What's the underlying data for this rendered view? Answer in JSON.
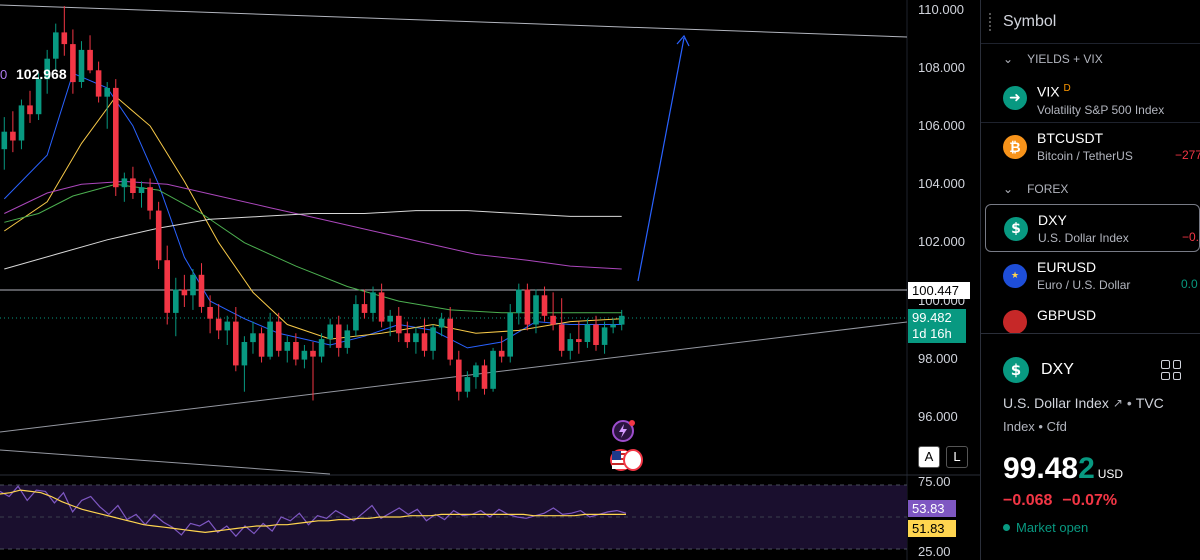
{
  "chart": {
    "price_scale": [
      "110.000",
      "108.000",
      "106.000",
      "104.000",
      "102.000",
      "100.000",
      "98.000",
      "96.000"
    ],
    "high_label_prefix": "0",
    "high_label": "102.968",
    "level_tag": "100.447",
    "last_price_tag": "99.482",
    "countdown": "1d 16h",
    "rsi_scale": [
      "75.00",
      "25.00"
    ],
    "rsi_value": "53.83",
    "rsi_ma_value": "51.83",
    "scale_buttons": [
      "A",
      "L"
    ],
    "colors": {
      "up": "#089981",
      "down": "#f23645",
      "arrow": "#2962ff"
    }
  },
  "chart_data": {
    "type": "candlestick",
    "ylim": [
      95.5,
      110.3
    ],
    "rsi_ylim": [
      25,
      75
    ],
    "candles": [
      [
        105.2,
        106.3,
        104.5,
        105.8
      ],
      [
        105.8,
        106.5,
        105.1,
        105.5
      ],
      [
        105.5,
        106.9,
        105.2,
        106.7
      ],
      [
        106.7,
        107.2,
        106.1,
        106.4
      ],
      [
        106.4,
        107.8,
        106.2,
        107.6
      ],
      [
        107.6,
        108.6,
        107.1,
        108.3
      ],
      [
        108.3,
        109.5,
        107.9,
        109.2
      ],
      [
        109.2,
        110.1,
        108.4,
        108.8
      ],
      [
        108.8,
        109.3,
        107.1,
        107.5
      ],
      [
        107.5,
        108.9,
        107.3,
        108.6
      ],
      [
        108.6,
        109.1,
        107.8,
        107.9
      ],
      [
        107.9,
        108.2,
        106.8,
        107.0
      ],
      [
        107.0,
        107.5,
        105.9,
        107.3
      ],
      [
        107.3,
        107.6,
        103.6,
        103.9
      ],
      [
        103.9,
        104.4,
        103.4,
        104.2
      ],
      [
        104.2,
        104.6,
        103.5,
        103.7
      ],
      [
        103.7,
        104.1,
        103.2,
        103.9
      ],
      [
        103.9,
        104.2,
        102.8,
        103.1
      ],
      [
        103.1,
        103.4,
        101.1,
        101.4
      ],
      [
        101.4,
        101.9,
        99.2,
        99.6
      ],
      [
        99.6,
        100.8,
        98.8,
        100.4
      ],
      [
        100.4,
        100.9,
        99.8,
        100.2
      ],
      [
        100.2,
        101.1,
        99.7,
        100.9
      ],
      [
        100.9,
        101.3,
        99.6,
        99.8
      ],
      [
        99.8,
        100.2,
        98.9,
        99.4
      ],
      [
        99.4,
        99.9,
        98.7,
        99.0
      ],
      [
        99.0,
        99.5,
        98.5,
        99.3
      ],
      [
        99.3,
        99.8,
        97.6,
        97.8
      ],
      [
        97.8,
        98.8,
        96.9,
        98.6
      ],
      [
        98.6,
        99.3,
        98.2,
        98.9
      ],
      [
        98.9,
        99.1,
        97.9,
        98.1
      ],
      [
        98.1,
        99.6,
        98.0,
        99.3
      ],
      [
        99.3,
        99.6,
        98.1,
        98.3
      ],
      [
        98.3,
        98.8,
        97.9,
        98.6
      ],
      [
        98.6,
        98.9,
        97.8,
        98.0
      ],
      [
        98.0,
        98.5,
        97.7,
        98.3
      ],
      [
        98.3,
        98.6,
        96.6,
        98.1
      ],
      [
        98.1,
        98.9,
        97.9,
        98.7
      ],
      [
        98.7,
        99.4,
        98.4,
        99.2
      ],
      [
        99.2,
        99.5,
        98.1,
        98.4
      ],
      [
        98.4,
        99.2,
        98.2,
        99.0
      ],
      [
        99.0,
        100.2,
        98.8,
        99.9
      ],
      [
        99.9,
        100.4,
        99.4,
        99.6
      ],
      [
        99.6,
        100.5,
        99.3,
        100.3
      ],
      [
        100.3,
        100.6,
        99.1,
        99.3
      ],
      [
        99.3,
        99.7,
        98.8,
        99.5
      ],
      [
        99.5,
        99.8,
        98.6,
        98.9
      ],
      [
        98.9,
        99.3,
        98.4,
        98.6
      ],
      [
        98.6,
        99.1,
        98.2,
        98.9
      ],
      [
        98.9,
        99.4,
        98.1,
        98.3
      ],
      [
        98.3,
        99.2,
        98.0,
        99.1
      ],
      [
        99.1,
        99.6,
        98.8,
        99.4
      ],
      [
        99.4,
        99.8,
        97.8,
        98.0
      ],
      [
        98.0,
        98.3,
        96.6,
        96.9
      ],
      [
        96.9,
        97.6,
        96.7,
        97.4
      ],
      [
        97.4,
        97.9,
        97.0,
        97.8
      ],
      [
        97.8,
        98.0,
        96.8,
        97.0
      ],
      [
        97.0,
        98.4,
        96.9,
        98.3
      ],
      [
        98.3,
        98.8,
        97.9,
        98.1
      ],
      [
        98.1,
        99.9,
        97.9,
        99.6
      ],
      [
        99.6,
        100.6,
        99.2,
        100.4
      ],
      [
        100.4,
        100.6,
        99.0,
        99.2
      ],
      [
        99.2,
        100.4,
        98.9,
        100.2
      ],
      [
        100.2,
        100.5,
        99.3,
        99.5
      ],
      [
        99.5,
        100.3,
        99.0,
        99.2
      ],
      [
        99.2,
        100.1,
        98.1,
        98.3
      ],
      [
        98.3,
        98.9,
        98.0,
        98.7
      ],
      [
        98.7,
        99.3,
        98.2,
        98.6
      ],
      [
        98.6,
        99.4,
        98.4,
        99.2
      ],
      [
        99.2,
        99.5,
        98.3,
        98.5
      ],
      [
        98.5,
        99.3,
        98.2,
        99.1
      ],
      [
        99.1,
        99.4,
        98.9,
        99.2
      ],
      [
        99.2,
        99.7,
        99.0,
        99.5
      ]
    ],
    "lines": [
      {
        "name": "",
        "color": "#2962ff",
        "width": 1,
        "points": [
          [
            0,
            103.5
          ],
          [
            5,
            105.0
          ],
          [
            8,
            107.8
          ],
          [
            12,
            107.3
          ],
          [
            15,
            106.0
          ],
          [
            18,
            104.0
          ],
          [
            21,
            101.5
          ],
          [
            24,
            100.0
          ],
          [
            28,
            99.4
          ],
          [
            32,
            98.9
          ],
          [
            38,
            98.5
          ],
          [
            42,
            98.8
          ],
          [
            46,
            99.2
          ],
          [
            50,
            99.0
          ],
          [
            54,
            98.4
          ],
          [
            58,
            98.6
          ],
          [
            62,
            99.3
          ],
          [
            66,
            99.2
          ],
          [
            72,
            99.2
          ]
        ]
      },
      {
        "name": "",
        "color": "#f7c948",
        "width": 1,
        "points": [
          [
            0,
            102.4
          ],
          [
            5,
            103.4
          ],
          [
            9,
            105.4
          ],
          [
            13,
            107.0
          ],
          [
            17,
            106.0
          ],
          [
            21,
            104.1
          ],
          [
            25,
            102.0
          ],
          [
            29,
            100.3
          ],
          [
            33,
            99.2
          ],
          [
            38,
            98.7
          ],
          [
            44,
            98.9
          ],
          [
            50,
            99.2
          ],
          [
            55,
            98.9
          ],
          [
            60,
            99.0
          ],
          [
            66,
            99.3
          ],
          [
            72,
            99.4
          ]
        ]
      },
      {
        "name": "",
        "color": "#4caf50",
        "width": 1,
        "points": [
          [
            0,
            102.7
          ],
          [
            4,
            103.0
          ],
          [
            8,
            103.6
          ],
          [
            13,
            104.0
          ],
          [
            18,
            103.8
          ],
          [
            23,
            103.0
          ],
          [
            28,
            102.0
          ],
          [
            34,
            101.2
          ],
          [
            40,
            100.5
          ],
          [
            46,
            100.0
          ],
          [
            52,
            99.7
          ],
          [
            58,
            99.6
          ],
          [
            64,
            99.6
          ],
          [
            72,
            99.6
          ]
        ]
      },
      {
        "name": "",
        "color": "#ab47bc",
        "width": 1,
        "points": [
          [
            0,
            103.0
          ],
          [
            5,
            103.7
          ],
          [
            9,
            104.0
          ],
          [
            14,
            104.1
          ],
          [
            19,
            104.0
          ],
          [
            25,
            103.6
          ],
          [
            31,
            103.2
          ],
          [
            37,
            102.8
          ],
          [
            43,
            102.4
          ],
          [
            49,
            102.0
          ],
          [
            55,
            101.6
          ],
          [
            61,
            101.4
          ],
          [
            66,
            101.2
          ],
          [
            72,
            101.1
          ]
        ]
      },
      {
        "name": "",
        "color": "#d9d9d9",
        "width": 1,
        "points": [
          [
            0,
            101.1
          ],
          [
            6,
            101.6
          ],
          [
            12,
            102.1
          ],
          [
            18,
            102.5
          ],
          [
            24,
            102.8
          ],
          [
            30,
            102.9
          ],
          [
            36,
            103.0
          ],
          [
            42,
            103.0
          ],
          [
            48,
            103.1
          ],
          [
            54,
            103.1
          ],
          [
            60,
            103.0
          ],
          [
            66,
            102.9
          ],
          [
            72,
            102.9
          ]
        ]
      }
    ],
    "rsi": [
      70,
      66,
      74,
      63,
      71,
      70,
      61,
      69,
      54,
      63,
      66,
      58,
      52,
      59,
      48,
      52,
      44,
      52,
      46,
      42,
      36,
      45,
      43,
      47,
      38,
      43,
      35,
      43,
      37,
      45,
      39,
      50,
      47,
      53,
      44,
      51,
      49,
      55,
      51,
      47,
      53,
      59,
      49,
      53,
      57,
      52,
      56,
      47,
      52,
      48,
      55,
      51,
      52,
      55,
      50,
      56,
      52,
      50,
      49,
      51,
      53,
      57,
      52,
      53,
      55,
      50,
      52,
      54,
      55,
      53
    ],
    "rsi_ma": [
      68,
      69,
      71,
      70,
      69,
      66,
      62,
      59,
      56,
      54,
      52,
      50,
      48,
      46,
      44,
      43,
      42,
      41,
      40,
      39,
      38,
      39,
      40,
      41,
      42,
      43,
      43,
      44,
      44,
      45,
      46,
      47,
      47,
      48,
      48,
      49,
      49,
      50,
      50,
      50,
      51,
      51,
      51,
      52,
      52,
      52,
      52,
      52,
      52,
      52,
      52,
      52,
      51,
      51,
      51,
      51,
      51,
      52,
      52,
      52,
      52,
      52
    ]
  },
  "sidebar": {
    "title": "Symbol",
    "sections": [
      {
        "title": "YIELDS + VIX",
        "items": [
          {
            "ticker": "VIX",
            "badge": "D",
            "desc": "Volatility S&P 500 Index",
            "change": "",
            "logo": "vix-logo",
            "logo_color": "#089981"
          },
          {
            "ticker": "BTCUSDT",
            "badge": "",
            "desc": "Bitcoin / TetherUS",
            "change": "−277",
            "logo": "bitcoin-logo",
            "logo_color": "#f7931a"
          }
        ]
      },
      {
        "title": "FOREX",
        "items": [
          {
            "ticker": "DXY",
            "badge": "",
            "desc": "U.S. Dollar Index",
            "change": "−0.",
            "logo": "dollar-logo",
            "logo_color": "#089981"
          },
          {
            "ticker": "EURUSD",
            "badge": "",
            "desc": "Euro / U.S. Dollar",
            "change": "0.0",
            "logo": "eu-us-flag-logo",
            "logo_color": "#1e4ed8"
          },
          {
            "ticker": "GBPUSD",
            "badge": "",
            "desc": "",
            "change": "",
            "logo": "gb-us-flag-logo",
            "logo_color": "#c62828"
          }
        ]
      }
    ]
  },
  "detail": {
    "ticker": "DXY",
    "name": "U.S. Dollar Index",
    "exchange": "TVC",
    "meta": "Index • Cfd",
    "price_main": "99.48",
    "price_last": "2",
    "currency": "USD",
    "change_abs": "−0.068",
    "change_pct": "−0.07%",
    "status": "Market open"
  }
}
